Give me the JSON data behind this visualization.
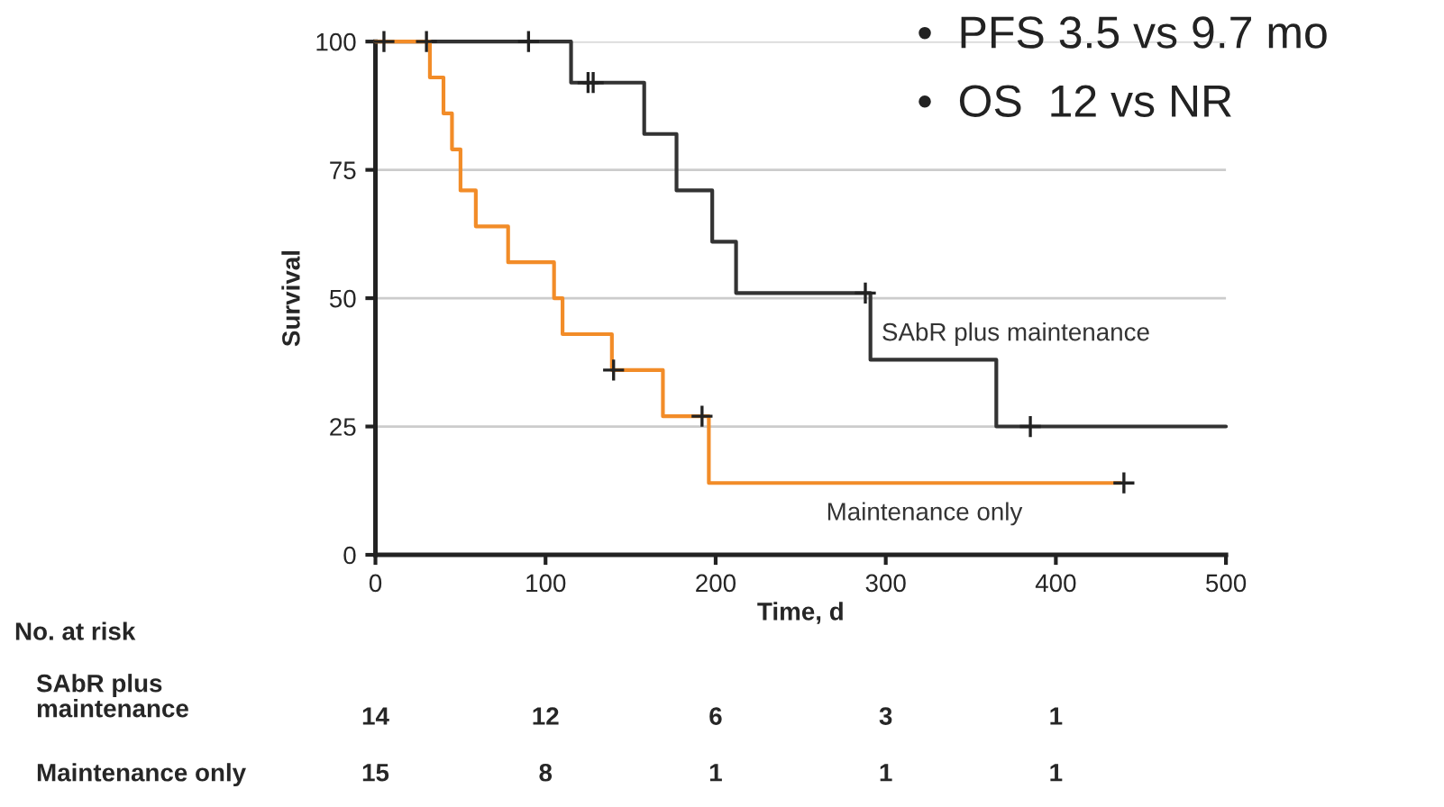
{
  "chart_data": {
    "type": "step",
    "xlabel": "Time, d",
    "ylabel": "Survival",
    "xlim": [
      0,
      500
    ],
    "xticks": [
      0,
      100,
      200,
      300,
      400,
      500
    ],
    "ylim": [
      0,
      100
    ],
    "yticks": [
      0,
      25,
      50,
      75,
      100
    ],
    "grid": "y",
    "legend": false,
    "line_style": "solid",
    "series": [
      {
        "name": "SAbR plus maintenance",
        "color": "#333333",
        "x": [
          0,
          115,
          158,
          177,
          198,
          212,
          291,
          365,
          500
        ],
        "values": [
          100,
          92,
          82,
          71,
          61,
          51,
          38,
          25,
          25
        ]
      },
      {
        "name": "Maintenance only",
        "color": "#f28c28",
        "x": [
          0,
          32,
          40,
          45,
          50,
          59,
          78,
          105,
          110,
          139,
          169,
          196,
          438
        ],
        "values": [
          100,
          93,
          86,
          79,
          71,
          64,
          57,
          50,
          43,
          36,
          27,
          14,
          14
        ]
      },
      {
        "type": "scatter",
        "marker": "cross",
        "color": "#222222",
        "x": [
          5,
          90,
          125,
          128,
          288,
          385
        ],
        "values": [
          100,
          100,
          92,
          92,
          51,
          25
        ]
      },
      {
        "type": "scatter",
        "marker": "cross",
        "color": "#222222",
        "x": [
          30,
          140,
          192,
          440
        ],
        "values": [
          100,
          36,
          27,
          14
        ]
      }
    ],
    "annotations": [
      "•  PFS 3.5 vs 9.7 mo",
      "•  OS  12 vs NR",
      "No. at risk",
      "SAbR plus\nmaintenance",
      "14",
      "12",
      "6",
      "3",
      "1",
      "Maintenance only",
      "15",
      "8",
      "1",
      "1",
      "1"
    ]
  }
}
